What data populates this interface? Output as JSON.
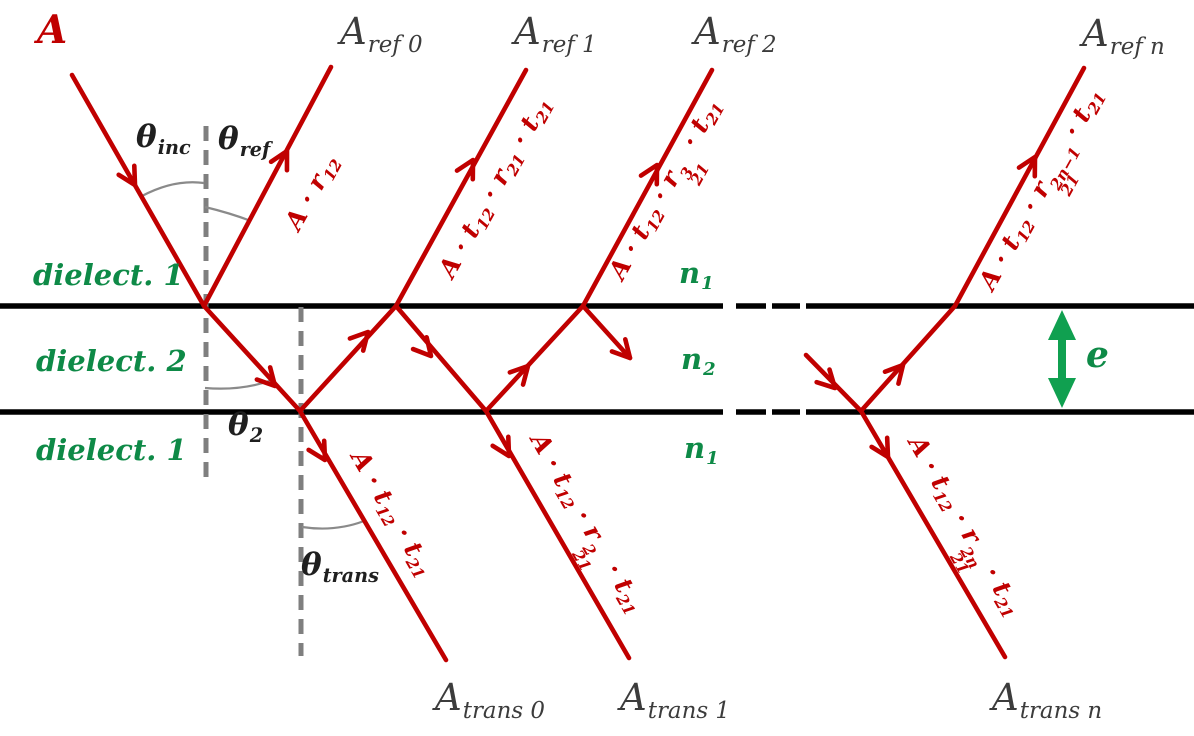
{
  "colors": {
    "ray_red": "#C00000",
    "label_gray": "#3C3C3C",
    "medium_green": "#0E8A47",
    "arrow_green": "#10A050",
    "angle_text": "#1F1F1F",
    "guide_gray": "#7F7F7F",
    "interface_black": "#000000",
    "background": "#FFFFFF"
  },
  "amplitudes": {
    "incident": "A",
    "reflected": [
      {
        "name": "A ref 0",
        "tokens": [
          {
            "t": "A",
            "sub": "ref 0"
          }
        ]
      },
      {
        "name": "A ref 1",
        "tokens": [
          {
            "t": "A",
            "sub": "ref 1"
          }
        ]
      },
      {
        "name": "A ref 2",
        "tokens": [
          {
            "t": "A",
            "sub": "ref 2"
          }
        ]
      },
      {
        "name": "A ref n",
        "tokens": [
          {
            "t": "A",
            "sub": "ref n"
          }
        ]
      }
    ],
    "transmitted": [
      {
        "name": "A trans 0",
        "tokens": [
          {
            "t": "A",
            "sub": "trans 0"
          }
        ]
      },
      {
        "name": "A trans 1",
        "tokens": [
          {
            "t": "A",
            "sub": "trans 1"
          }
        ]
      },
      {
        "name": "A trans n",
        "tokens": [
          {
            "t": "A",
            "sub": "trans n"
          }
        ]
      }
    ]
  },
  "media": {
    "layer_top": "dielect. 1",
    "layer_middle": "dielect. 2",
    "layer_bottom": "dielect. 1",
    "index_top": {
      "tokens": [
        {
          "t": "n",
          "sub": "1"
        }
      ]
    },
    "index_middle": {
      "tokens": [
        {
          "t": "n",
          "sub": "2"
        }
      ]
    },
    "index_bottom": {
      "tokens": [
        {
          "t": "n",
          "sub": "1"
        }
      ]
    },
    "thickness": "e"
  },
  "angles": {
    "incidence": {
      "tokens": [
        {
          "t": "θ",
          "sub": "inc"
        }
      ]
    },
    "reflection": {
      "tokens": [
        {
          "t": "θ",
          "sub": "ref"
        }
      ]
    },
    "refraction": {
      "tokens": [
        {
          "t": "θ",
          "sub": "2"
        }
      ]
    },
    "transmission": {
      "tokens": [
        {
          "t": "θ",
          "sub": "trans"
        }
      ]
    }
  },
  "ray_formulas": {
    "ref0": {
      "tokens": [
        {
          "t": "A · r",
          "sub": "12"
        }
      ]
    },
    "ref1": {
      "tokens": [
        {
          "t": "A · t",
          "sub": "12"
        },
        {
          "t": " · r",
          "sub": "21"
        },
        {
          "t": " · t",
          "sub": "21"
        }
      ]
    },
    "ref2": {
      "tokens": [
        {
          "t": "A · t",
          "sub": "12"
        },
        {
          "t": " · r",
          "sub": "21",
          "sup": "3"
        },
        {
          "t": " · t",
          "sub": "21"
        }
      ]
    },
    "refn": {
      "tokens": [
        {
          "t": "A · t",
          "sub": "12"
        },
        {
          "t": " · r",
          "sub": "21",
          "sup": "2n−1"
        },
        {
          "t": " · t",
          "sub": "21"
        }
      ]
    },
    "trans0": {
      "tokens": [
        {
          "t": "A · t",
          "sub": "12"
        },
        {
          "t": " · t",
          "sub": "21"
        }
      ]
    },
    "trans1": {
      "tokens": [
        {
          "t": "A · t",
          "sub": "12"
        },
        {
          "t": " · r",
          "sub": "21",
          "sup": "2"
        },
        {
          "t": " · t",
          "sub": "21"
        }
      ]
    },
    "transn": {
      "tokens": [
        {
          "t": "A · t",
          "sub": "12"
        },
        {
          "t": " · r",
          "sub": "21",
          "sup": "2n"
        },
        {
          "t": " · t",
          "sub": "21"
        }
      ]
    }
  },
  "icons": {
    "thickness_arrow": "double-headed-vertical-arrow"
  }
}
